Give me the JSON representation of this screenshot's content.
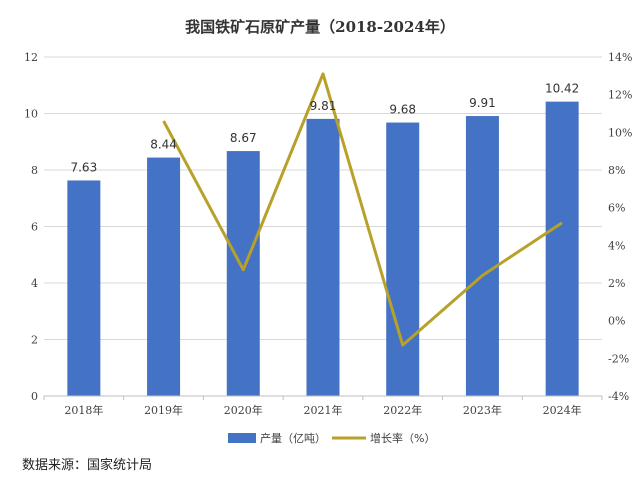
{
  "chart_data": {
    "type": "bar",
    "title": "我国铁矿石原矿产量（2018-2024年）",
    "categories": [
      "2018年",
      "2019年",
      "2020年",
      "2021年",
      "2022年",
      "2023年",
      "2024年"
    ],
    "series": [
      {
        "name": "产量（亿吨）",
        "type": "bar",
        "axis": "left",
        "values": [
          7.63,
          8.44,
          8.67,
          9.81,
          9.68,
          9.91,
          10.42
        ],
        "data_labels": [
          "7.63",
          "8.44",
          "8.67",
          "9.81",
          "9.68",
          "9.91",
          "10.42"
        ],
        "color": "#4472C4"
      },
      {
        "name": "增长率（%）",
        "type": "line",
        "axis": "right",
        "values": [
          null,
          10.6,
          2.7,
          13.1,
          -1.3,
          2.4,
          5.2
        ],
        "color": "#B8A12A"
      }
    ],
    "y_left": {
      "range": [
        0,
        12
      ],
      "ticks": [
        "0",
        "2",
        "4",
        "6",
        "8",
        "10",
        "12"
      ]
    },
    "y_right": {
      "range": [
        -4,
        14
      ],
      "ticks": [
        "-4%",
        "-2%",
        "0%",
        "2%",
        "4%",
        "6%",
        "8%",
        "10%",
        "12%",
        "14%"
      ]
    },
    "grid": true,
    "legend_position": "bottom"
  },
  "source_note": "数据来源：国家统计局"
}
